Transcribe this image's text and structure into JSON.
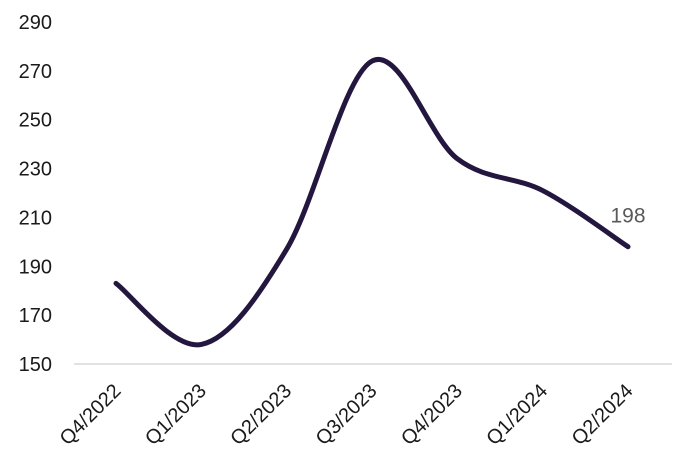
{
  "chart_data": {
    "type": "line",
    "title": "",
    "xlabel": "",
    "ylabel": "",
    "categories": [
      "Q4/2022",
      "Q1/2023",
      "Q2/2023",
      "Q3/2023",
      "Q4/2023",
      "Q1/2024",
      "Q2/2024"
    ],
    "series": [
      {
        "values": [
          183,
          158,
          197,
          274,
          234,
          221,
          198
        ]
      }
    ],
    "ylim": [
      150,
      290
    ],
    "yticks": [
      150,
      170,
      190,
      210,
      230,
      250,
      270,
      290
    ],
    "grid": false,
    "legend": "none",
    "smooth": true,
    "data_labels": [
      {
        "index": 6,
        "text": "198"
      }
    ],
    "colors": {
      "line": "#24173f",
      "axis": "#d9d9d9",
      "tick_text": "#1a1a1a",
      "data_label_text": "#595959"
    }
  }
}
